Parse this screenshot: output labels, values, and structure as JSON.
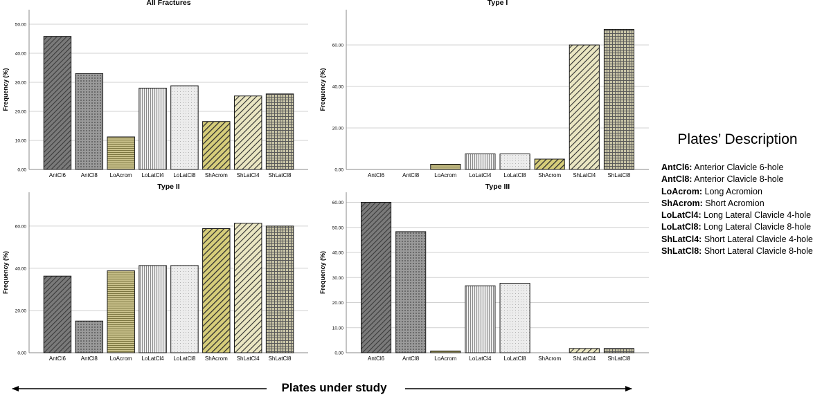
{
  "chart_data": [
    {
      "type": "bar",
      "title": "All Fractures",
      "ylabel": "Frequency (%)",
      "xlabel": "",
      "categories": [
        "AntCl6",
        "AntCl8",
        "LoAcrom",
        "LoLatCl4",
        "LoLatCl8",
        "ShAcrom",
        "ShLatCl4",
        "ShLatCl8"
      ],
      "values": [
        45.8,
        33.0,
        11.2,
        28.0,
        28.8,
        16.5,
        25.3,
        26.0
      ],
      "ylim": [
        0,
        55
      ],
      "yticks": [
        0,
        10,
        20,
        30,
        40,
        50
      ],
      "ytick_labels": [
        "0.00",
        "10.00",
        "20.00",
        "30.00",
        "40.00",
        "50.00"
      ],
      "grid": true
    },
    {
      "type": "bar",
      "title": "Type I",
      "ylabel": "Frequency (%)",
      "xlabel": "",
      "categories": [
        "AntCl6",
        "AntCl8",
        "LoAcrom",
        "LoLatCl4",
        "LoLatCl8",
        "ShAcrom",
        "ShLatCl4",
        "ShLatCl8"
      ],
      "values": [
        0,
        0,
        2.5,
        7.5,
        7.5,
        5.0,
        60.0,
        67.5
      ],
      "ylim": [
        0,
        77
      ],
      "yticks": [
        0,
        20,
        40,
        60
      ],
      "ytick_labels": [
        "0.00",
        "20.00",
        "40.00",
        "60.00"
      ],
      "grid": true
    },
    {
      "type": "bar",
      "title": "Type II",
      "ylabel": "Frequency (%)",
      "xlabel": "",
      "categories": [
        "AntCl6",
        "AntCl8",
        "LoAcrom",
        "LoLatCl4",
        "LoLatCl8",
        "ShAcrom",
        "ShLatCl4",
        "ShLatCl8"
      ],
      "values": [
        36.3,
        15.0,
        38.8,
        41.3,
        41.3,
        58.8,
        61.3,
        60.0
      ],
      "ylim": [
        0,
        76
      ],
      "yticks": [
        0,
        20,
        40,
        60
      ],
      "ytick_labels": [
        "0.00",
        "20.00",
        "40.00",
        "60.00"
      ],
      "grid": true
    },
    {
      "type": "bar",
      "title": "Type III",
      "ylabel": "Frequency (%)",
      "xlabel": "",
      "categories": [
        "AntCl6",
        "AntCl8",
        "LoAcrom",
        "LoLatCl4",
        "LoLatCl8",
        "ShAcrom",
        "ShLatCl4",
        "ShLatCl8"
      ],
      "values": [
        60.0,
        48.3,
        0.7,
        26.7,
        27.7,
        0,
        1.7,
        1.7
      ],
      "ylim": [
        0,
        64
      ],
      "yticks": [
        0,
        10,
        20,
        30,
        40,
        50,
        60
      ],
      "ytick_labels": [
        "0.00",
        "10.00",
        "20.00",
        "30.00",
        "40.00",
        "50.00",
        "60.00"
      ],
      "grid": true
    }
  ],
  "legend": {
    "title": "Plates’ Description",
    "items": [
      {
        "code": "AntCl6:",
        "desc": "Anterior Clavicle 6-hole"
      },
      {
        "code": "AntCl8:",
        "desc": "Anterior Clavicle 8-hole"
      },
      {
        "code": "LoAcrom:",
        "desc": "Long Acromion"
      },
      {
        "code": "ShAcrom:",
        "desc": "Short Acromion"
      },
      {
        "code": "LoLatCl4:",
        "desc": "Long Lateral Clavicle 4-hole"
      },
      {
        "code": "LoLatCl8:",
        "desc": "Long Lateral Clavicle 8-hole"
      },
      {
        "code": "ShLatCl4:",
        "desc": "Short Lateral Clavicle 4-hole"
      },
      {
        "code": "ShLatCl8:",
        "desc": "Short Lateral Clavicle 8-hole"
      }
    ]
  },
  "footer": {
    "label": "Plates under study"
  },
  "colors": {
    "AntCl6": "#6a6a6a",
    "AntCl8": "#8e8e8e",
    "LoAcrom": "#b0aa6e",
    "LoLatCl4": "#c8c8c8",
    "LoLatCl8": "#e2e2e2",
    "ShAcrom": "#9c9450",
    "ShLatCl4": "#bdb89a",
    "ShLatCl8": "#a8a8a8",
    "grid": "#d0d0d0",
    "axis": "#888888"
  }
}
